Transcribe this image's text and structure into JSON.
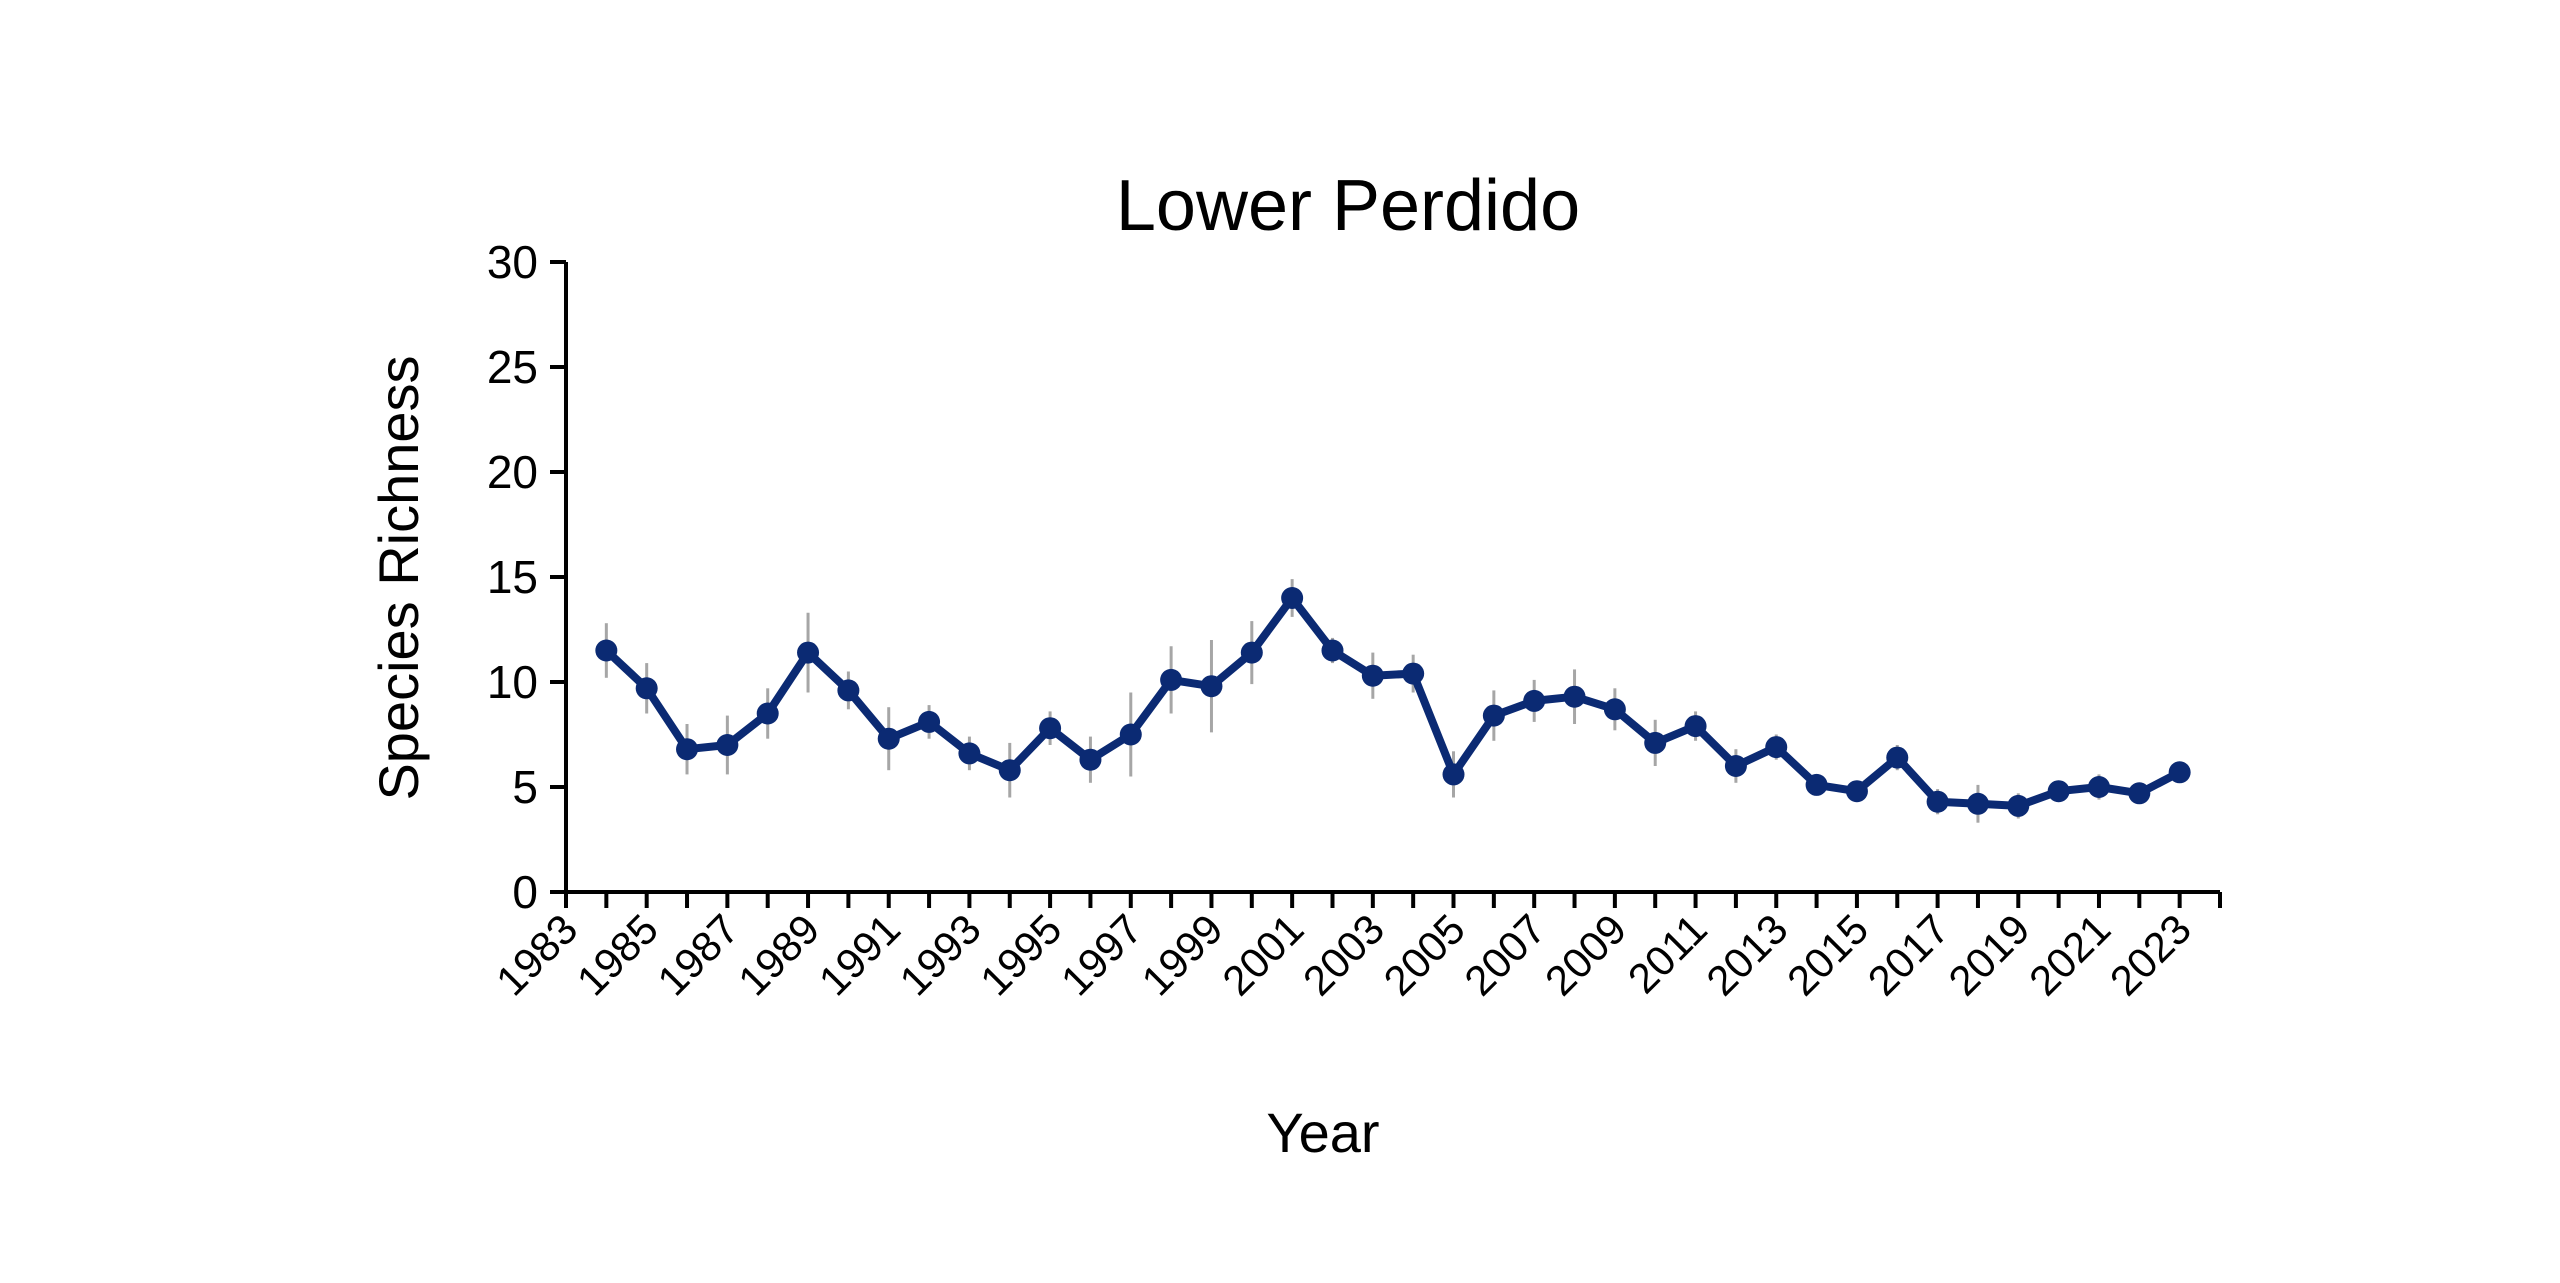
{
  "chart_data": {
    "type": "line",
    "title": "Lower Perdido",
    "xlabel": "Year",
    "ylabel": "Species Richness",
    "xlim": [
      1983,
      2024
    ],
    "ylim": [
      0,
      30
    ],
    "yticks": [
      "0",
      "5",
      "10",
      "15",
      "20",
      "25",
      "30"
    ],
    "xticks": [
      "1983",
      "1985",
      "1987",
      "1989",
      "1991",
      "1993",
      "1995",
      "1997",
      "1999",
      "2001",
      "2003",
      "2005",
      "2007",
      "2009",
      "2011",
      "2013",
      "2015",
      "2017",
      "2019",
      "2021",
      "2023"
    ],
    "grid": false,
    "series": [
      {
        "color": "#0b2a73",
        "error_color": "#a6a6a6",
        "points": [
          {
            "x": 1984,
            "y": 11.5,
            "err": 1.3
          },
          {
            "x": 1985,
            "y": 9.7,
            "err": 1.2
          },
          {
            "x": 1986,
            "y": 6.8,
            "err": 1.2
          },
          {
            "x": 1987,
            "y": 7.0,
            "err": 1.4
          },
          {
            "x": 1988,
            "y": 8.5,
            "err": 1.2
          },
          {
            "x": 1989,
            "y": 11.4,
            "err": 1.9
          },
          {
            "x": 1990,
            "y": 9.6,
            "err": 0.9
          },
          {
            "x": 1991,
            "y": 7.3,
            "err": 1.5
          },
          {
            "x": 1992,
            "y": 8.1,
            "err": 0.8
          },
          {
            "x": 1993,
            "y": 6.6,
            "err": 0.8
          },
          {
            "x": 1994,
            "y": 5.8,
            "err": 1.3
          },
          {
            "x": 1995,
            "y": 7.8,
            "err": 0.8
          },
          {
            "x": 1996,
            "y": 6.3,
            "err": 1.1
          },
          {
            "x": 1997,
            "y": 7.5,
            "err": 2.0
          },
          {
            "x": 1998,
            "y": 10.1,
            "err": 1.6
          },
          {
            "x": 1999,
            "y": 9.8,
            "err": 2.2
          },
          {
            "x": 2000,
            "y": 11.4,
            "err": 1.5
          },
          {
            "x": 2001,
            "y": 14.0,
            "err": 0.9
          },
          {
            "x": 2002,
            "y": 11.5,
            "err": 0.6
          },
          {
            "x": 2003,
            "y": 10.3,
            "err": 1.1
          },
          {
            "x": 2004,
            "y": 10.4,
            "err": 0.9
          },
          {
            "x": 2005,
            "y": 5.6,
            "err": 1.1
          },
          {
            "x": 2006,
            "y": 8.4,
            "err": 1.2
          },
          {
            "x": 2007,
            "y": 9.1,
            "err": 1.0
          },
          {
            "x": 2008,
            "y": 9.3,
            "err": 1.3
          },
          {
            "x": 2009,
            "y": 8.7,
            "err": 1.0
          },
          {
            "x": 2010,
            "y": 7.1,
            "err": 1.1
          },
          {
            "x": 2011,
            "y": 7.9,
            "err": 0.7
          },
          {
            "x": 2012,
            "y": 6.0,
            "err": 0.8
          },
          {
            "x": 2013,
            "y": 6.9,
            "err": 0.6
          },
          {
            "x": 2014,
            "y": 5.1,
            "err": 0.5
          },
          {
            "x": 2015,
            "y": 4.8,
            "err": 0.5
          },
          {
            "x": 2016,
            "y": 6.4,
            "err": 0.6
          },
          {
            "x": 2017,
            "y": 4.3,
            "err": 0.6
          },
          {
            "x": 2018,
            "y": 4.2,
            "err": 0.9
          },
          {
            "x": 2019,
            "y": 4.1,
            "err": 0.6
          },
          {
            "x": 2020,
            "y": 4.8,
            "err": 0.5
          },
          {
            "x": 2021,
            "y": 5.0,
            "err": 0.6
          },
          {
            "x": 2022,
            "y": 4.7,
            "err": 0.5
          },
          {
            "x": 2023,
            "y": 5.7,
            "err": 0.5
          }
        ]
      }
    ]
  }
}
